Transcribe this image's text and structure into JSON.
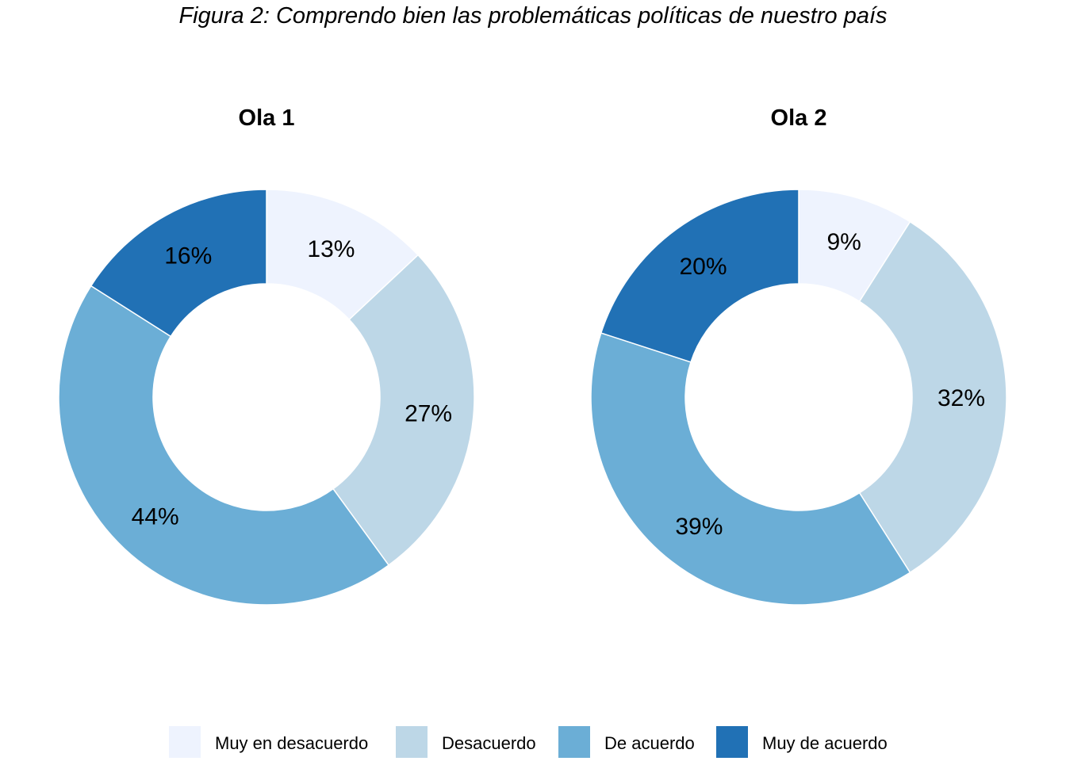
{
  "figure": {
    "title": "Figura 2: Comprendo bien las problemáticas políticas de nuestro país"
  },
  "legend": {
    "placement": "bottom",
    "items": [
      {
        "label": "Muy en desacuerdo",
        "color": "#EEF3FE"
      },
      {
        "label": "Desacuerdo",
        "color": "#BDD7E7"
      },
      {
        "label": "De acuerdo",
        "color": "#6BAED6"
      },
      {
        "label": "Muy de acuerdo",
        "color": "#2171B5"
      }
    ]
  },
  "chart_data": [
    {
      "type": "pie",
      "variant": "donut",
      "title": "Ola 1",
      "categories": [
        "Muy en desacuerdo",
        "Desacuerdo",
        "De acuerdo",
        "Muy de acuerdo"
      ],
      "values": [
        13,
        27,
        44,
        16
      ],
      "labels": [
        "13%",
        "27%",
        "44%",
        "16%"
      ],
      "colors": [
        "#EEF3FE",
        "#BDD7E7",
        "#6BAED6",
        "#2171B5"
      ],
      "start": "top",
      "direction": "clockwise"
    },
    {
      "type": "pie",
      "variant": "donut",
      "title": "Ola 2",
      "categories": [
        "Muy en desacuerdo",
        "Desacuerdo",
        "De acuerdo",
        "Muy de acuerdo"
      ],
      "values": [
        9,
        32,
        39,
        20
      ],
      "labels": [
        "9%",
        "32%",
        "39%",
        "20%"
      ],
      "colors": [
        "#EEF3FE",
        "#BDD7E7",
        "#6BAED6",
        "#2171B5"
      ],
      "start": "top",
      "direction": "clockwise"
    }
  ]
}
